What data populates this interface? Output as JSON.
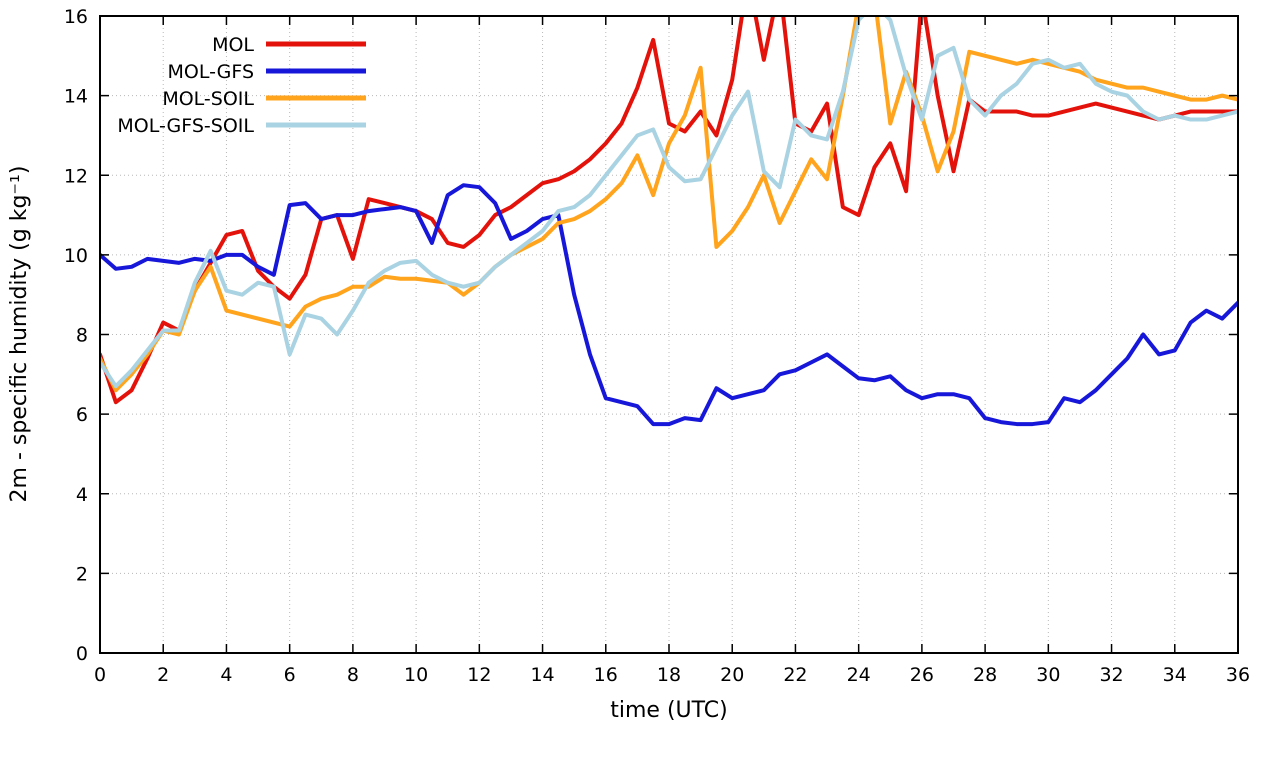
{
  "page": {
    "background": "#ffffff"
  },
  "chart_data": {
    "type": "line",
    "title": "",
    "xlabel": "time (UTC)",
    "ylabel": "2m - specific humidity (g kg⁻¹)",
    "xlim": [
      0,
      36
    ],
    "ylim": [
      0,
      16
    ],
    "xtick_step": 2,
    "ytick_step": 2,
    "grid": "dotted",
    "legend_position": "top-left-inside",
    "x": [
      0,
      0.5,
      1,
      1.5,
      2,
      2.5,
      3,
      3.5,
      4,
      4.5,
      5,
      5.5,
      6,
      6.5,
      7,
      7.5,
      8,
      8.5,
      9,
      9.5,
      10,
      10.5,
      11,
      11.5,
      12,
      12.5,
      13,
      13.5,
      14,
      14.5,
      15,
      15.5,
      16,
      16.5,
      17,
      17.5,
      18,
      18.5,
      19,
      19.5,
      20,
      20.5,
      21,
      21.5,
      22,
      22.5,
      23,
      23.5,
      24,
      24.5,
      25,
      25.5,
      26,
      26.5,
      27,
      27.5,
      28,
      28.5,
      29,
      29.5,
      30,
      30.5,
      31,
      31.5,
      32,
      32.5,
      33,
      33.5,
      34,
      34.5,
      35,
      35.5,
      36
    ],
    "series": [
      {
        "name": "MOL",
        "color": "#e3130b",
        "values": [
          7.5,
          6.3,
          6.6,
          7.4,
          8.3,
          8.1,
          9.1,
          9.8,
          10.5,
          10.6,
          9.6,
          9.2,
          8.9,
          9.5,
          10.9,
          11.0,
          9.9,
          11.4,
          11.3,
          11.2,
          11.1,
          10.9,
          10.3,
          10.2,
          10.5,
          11.0,
          11.2,
          11.5,
          11.8,
          11.9,
          12.1,
          12.4,
          12.8,
          13.3,
          14.2,
          15.4,
          13.3,
          13.1,
          13.6,
          13.0,
          14.4,
          17.0,
          14.9,
          16.8,
          13.3,
          13.1,
          13.8,
          11.2,
          11.0,
          12.2,
          12.8,
          11.6,
          16.5,
          14.0,
          12.1,
          13.9,
          13.6,
          13.6,
          13.6,
          13.5,
          13.5,
          13.6,
          13.7,
          13.8,
          13.7,
          13.6,
          13.5,
          13.4,
          13.5,
          13.6,
          13.6,
          13.6,
          13.6
        ]
      },
      {
        "name": "MOL-GFS",
        "color": "#1717d9",
        "values": [
          10.0,
          9.65,
          9.7,
          9.9,
          9.85,
          9.8,
          9.9,
          9.85,
          10.0,
          10.0,
          9.7,
          9.5,
          11.25,
          11.3,
          10.9,
          11.0,
          11.0,
          11.1,
          11.15,
          11.2,
          11.1,
          10.3,
          11.5,
          11.75,
          11.7,
          11.3,
          10.4,
          10.6,
          10.9,
          11.0,
          9.0,
          7.5,
          6.4,
          6.3,
          6.2,
          5.75,
          5.75,
          5.9,
          5.85,
          6.65,
          6.4,
          6.5,
          6.6,
          7.0,
          7.1,
          7.3,
          7.5,
          7.2,
          6.9,
          6.85,
          6.95,
          6.6,
          6.4,
          6.5,
          6.5,
          6.4,
          5.9,
          5.8,
          5.75,
          5.75,
          5.8,
          6.4,
          6.3,
          6.6,
          7.0,
          7.4,
          8.0,
          7.5,
          7.6,
          8.3,
          8.6,
          8.4,
          8.8
        ]
      },
      {
        "name": "MOL-SOIL",
        "color": "#ffa41c",
        "values": [
          7.4,
          6.6,
          7.0,
          7.5,
          8.1,
          8.0,
          9.1,
          9.7,
          8.6,
          8.5,
          8.4,
          8.3,
          8.2,
          8.7,
          8.9,
          9.0,
          9.2,
          9.2,
          9.45,
          9.4,
          9.4,
          9.35,
          9.3,
          9.0,
          9.3,
          9.7,
          10.0,
          10.2,
          10.4,
          10.8,
          10.9,
          11.1,
          11.4,
          11.8,
          12.5,
          11.5,
          12.8,
          13.5,
          14.7,
          10.2,
          10.6,
          11.2,
          12.0,
          10.8,
          11.6,
          12.4,
          11.9,
          14.0,
          16.3,
          16.5,
          13.3,
          14.6,
          13.5,
          12.1,
          13.1,
          15.1,
          15.0,
          14.9,
          14.8,
          14.9,
          14.8,
          14.7,
          14.6,
          14.4,
          14.3,
          14.2,
          14.2,
          14.1,
          14.0,
          13.9,
          13.9,
          14.0,
          13.9
        ]
      },
      {
        "name": "MOL-GFS-SOIL",
        "color": "#a9d3e2",
        "values": [
          7.3,
          6.7,
          7.1,
          7.6,
          8.1,
          8.1,
          9.3,
          10.1,
          9.1,
          9.0,
          9.3,
          9.2,
          7.5,
          8.5,
          8.4,
          8.0,
          8.6,
          9.3,
          9.6,
          9.8,
          9.85,
          9.5,
          9.3,
          9.2,
          9.3,
          9.7,
          10.0,
          10.3,
          10.6,
          11.1,
          11.2,
          11.5,
          12.0,
          12.5,
          13.0,
          13.15,
          12.2,
          11.85,
          11.9,
          12.7,
          13.5,
          14.1,
          12.1,
          11.7,
          13.4,
          13.0,
          12.9,
          14.1,
          15.9,
          16.3,
          15.9,
          14.5,
          13.4,
          15.0,
          15.2,
          13.9,
          13.5,
          14.0,
          14.3,
          14.8,
          14.9,
          14.7,
          14.8,
          14.3,
          14.1,
          14.0,
          13.6,
          13.4,
          13.5,
          13.4,
          13.4,
          13.5,
          13.6
        ]
      }
    ],
    "style": {
      "grid_color": "#b8b8b8",
      "border_color": "#000000",
      "line_width": 4
    }
  }
}
